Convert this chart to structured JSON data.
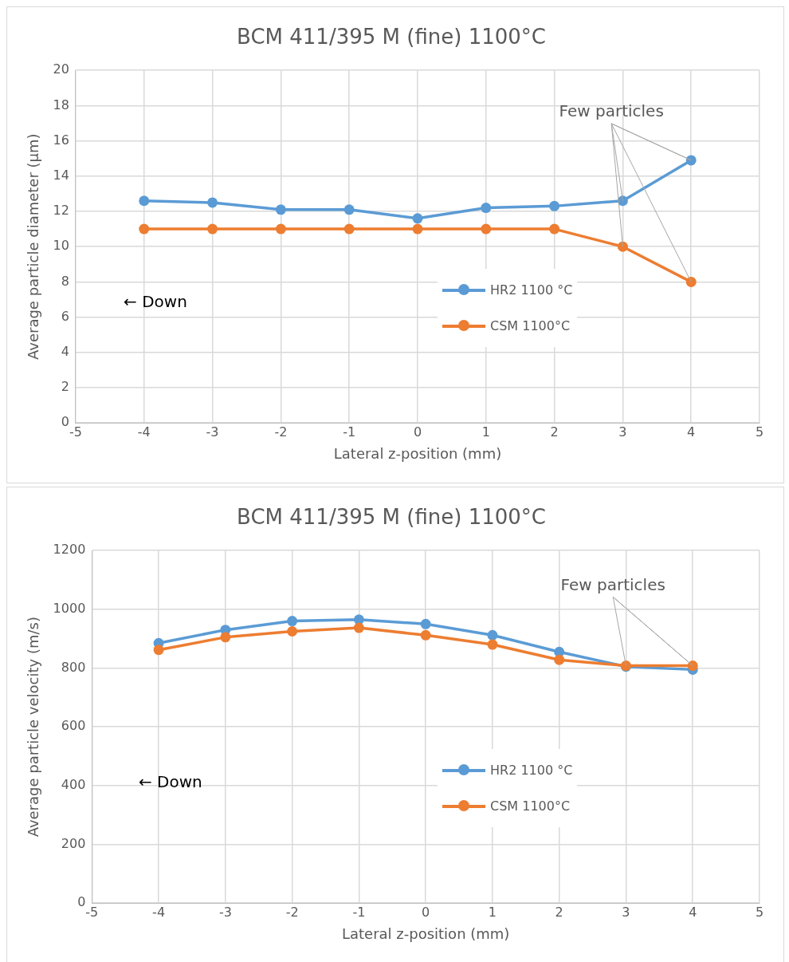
{
  "chart_data": [
    {
      "type": "line",
      "title": "BCM 411/395 M (fine) 1100°C",
      "xlabel": "Lateral z-position (mm)",
      "ylabel": "Average particle diameter (µm)",
      "x": [
        -4,
        -3,
        -2,
        -1,
        0,
        1,
        2,
        3,
        4
      ],
      "series": [
        {
          "name": "HR2 1100 °C",
          "color": "#5b9bd5",
          "values": [
            12.6,
            12.5,
            12.1,
            12.1,
            11.6,
            12.2,
            12.3,
            12.6,
            14.9
          ]
        },
        {
          "name": "CSM 1100°C",
          "color": "#ed7d31",
          "values": [
            11,
            11,
            11,
            11,
            11,
            11,
            11,
            10,
            8
          ]
        }
      ],
      "xlim": [
        -5,
        5
      ],
      "xticks": [
        -5,
        -4,
        -3,
        -2,
        -1,
        0,
        1,
        2,
        3,
        4,
        5
      ],
      "ylim": [
        0,
        20
      ],
      "yticks": [
        0,
        2,
        4,
        6,
        8,
        10,
        12,
        14,
        16,
        18,
        20
      ],
      "grid": true,
      "legend": "right",
      "marker": "circle",
      "line_style": "solid",
      "annotations": [
        "← Down",
        {
          "text": "Few particles",
          "x": 4,
          "y": 14.9
        }
      ]
    },
    {
      "type": "line",
      "title": "BCM 411/395 M (fine) 1100°C",
      "xlabel": "Lateral z-position (mm)",
      "ylabel": "Average particle velocity (m/s)",
      "x": [
        -4,
        -3,
        -2,
        -1,
        0,
        1,
        2,
        3,
        4
      ],
      "series": [
        {
          "name": "HR2 1100 °C",
          "color": "#5b9bd5",
          "values": [
            885,
            930,
            960,
            965,
            950,
            912,
            855,
            805,
            795
          ]
        },
        {
          "name": "CSM 1100°C",
          "color": "#ed7d31",
          "values": [
            862,
            905,
            925,
            937,
            912,
            880,
            828,
            808,
            808
          ]
        }
      ],
      "xlim": [
        -5,
        5
      ],
      "xticks": [
        -5,
        -4,
        -3,
        -2,
        -1,
        0,
        1,
        2,
        3,
        4,
        5
      ],
      "ylim": [
        0,
        1200
      ],
      "yticks": [
        0,
        200,
        400,
        600,
        800,
        1000,
        1200
      ],
      "grid": true,
      "legend": "right",
      "marker": "circle",
      "line_style": "solid",
      "annotations": [
        "← Down",
        {
          "text": "Few particles",
          "x": 4,
          "y": 808
        }
      ]
    }
  ]
}
